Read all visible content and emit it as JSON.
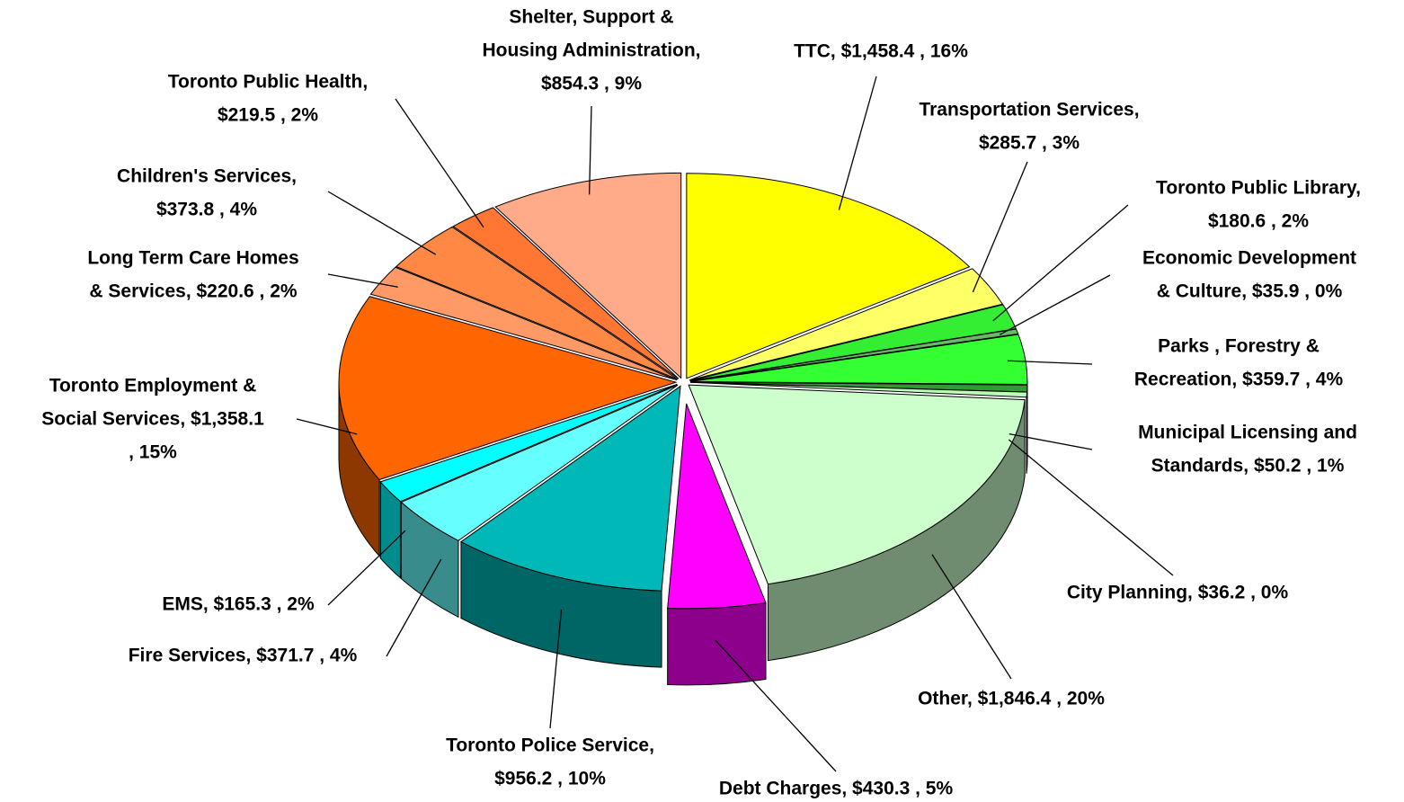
{
  "chart_data": {
    "type": "pie3d",
    "labels": [
      [
        "TTC, $1,458.4 , 16%"
      ],
      [
        "Transportation Services,",
        "$285.7 , 3%"
      ],
      [
        "Toronto Public Library,",
        "$180.6 , 2%"
      ],
      [
        "Economic Development",
        "& Culture, $35.9 , 0%"
      ],
      [
        "Parks , Forestry &",
        "Recreation, $359.7 , 4%"
      ],
      [
        "Municipal Licensing and",
        "Standards, $50.2 , 1%"
      ],
      [
        "City Planning, $36.2 , 0%"
      ],
      [
        "Other, $1,846.4 , 20%"
      ],
      [
        "Debt Charges, $430.3 , 5%"
      ],
      [
        "Toronto Police Service,",
        "$956.2 , 10%"
      ],
      [
        "Fire Services, $371.7 , 4%"
      ],
      [
        "EMS, $165.3 , 2%"
      ],
      [
        "Toronto Employment &",
        "Social Services, $1,358.1",
        ", 15%"
      ],
      [
        "Long Term Care Homes",
        "& Services, $220.6 , 2%"
      ],
      [
        "Children's Services,",
        "$373.8 , 4%"
      ],
      [
        "Toronto Public Health,",
        "$219.5 , 2%"
      ],
      [
        "Shelter, Support &",
        "Housing Administration,",
        "$854.3 , 9%"
      ]
    ],
    "values": [
      1458.4,
      285.7,
      180.6,
      35.9,
      359.7,
      50.2,
      36.2,
      1846.4,
      430.3,
      956.2,
      371.7,
      165.3,
      1358.1,
      220.6,
      373.8,
      219.5,
      854.3
    ],
    "colors": [
      "#ffff00",
      "#ffff66",
      "#33ee33",
      "#66bb66",
      "#33ff33",
      "#339933",
      "#bbffbb",
      "#ccffcc",
      "#ff00ff",
      "#00b8b8",
      "#66ffff",
      "#00ffff",
      "#ff6600",
      "#ff9966",
      "#ff8844",
      "#ff7733",
      "#ffaa88"
    ]
  }
}
